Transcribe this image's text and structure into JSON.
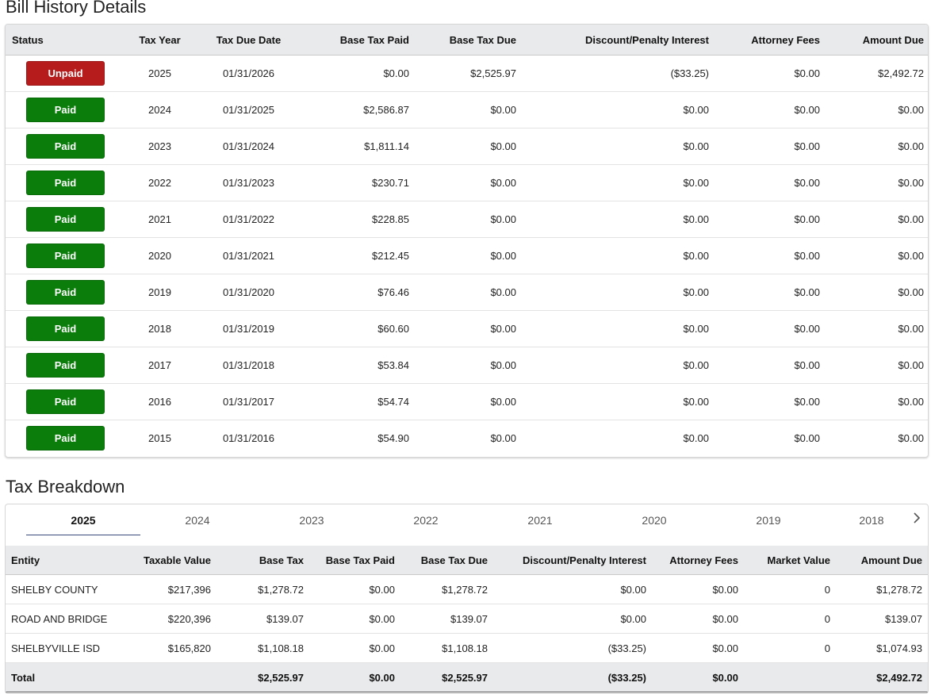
{
  "bill_history": {
    "title": "Bill History Details",
    "columns": [
      "Status",
      "Tax Year",
      "Tax Due Date",
      "Base Tax Paid",
      "Base Tax Due",
      "Discount/Penalty Interest",
      "Attorney Fees",
      "Amount Due"
    ],
    "rows": [
      {
        "status": "Unpaid",
        "status_color": "#b71c1c",
        "year": "2025",
        "due_date": "01/31/2026",
        "base_paid": "$0.00",
        "base_due": "$2,525.97",
        "discount": "($33.25)",
        "attorney": "$0.00",
        "amount_due": "$2,492.72"
      },
      {
        "status": "Paid",
        "status_color": "#0a7d0a",
        "year": "2024",
        "due_date": "01/31/2025",
        "base_paid": "$2,586.87",
        "base_due": "$0.00",
        "discount": "$0.00",
        "attorney": "$0.00",
        "amount_due": "$0.00"
      },
      {
        "status": "Paid",
        "status_color": "#0a7d0a",
        "year": "2023",
        "due_date": "01/31/2024",
        "base_paid": "$1,811.14",
        "base_due": "$0.00",
        "discount": "$0.00",
        "attorney": "$0.00",
        "amount_due": "$0.00"
      },
      {
        "status": "Paid",
        "status_color": "#0a7d0a",
        "year": "2022",
        "due_date": "01/31/2023",
        "base_paid": "$230.71",
        "base_due": "$0.00",
        "discount": "$0.00",
        "attorney": "$0.00",
        "amount_due": "$0.00"
      },
      {
        "status": "Paid",
        "status_color": "#0a7d0a",
        "year": "2021",
        "due_date": "01/31/2022",
        "base_paid": "$228.85",
        "base_due": "$0.00",
        "discount": "$0.00",
        "attorney": "$0.00",
        "amount_due": "$0.00"
      },
      {
        "status": "Paid",
        "status_color": "#0a7d0a",
        "year": "2020",
        "due_date": "01/31/2021",
        "base_paid": "$212.45",
        "base_due": "$0.00",
        "discount": "$0.00",
        "attorney": "$0.00",
        "amount_due": "$0.00"
      },
      {
        "status": "Paid",
        "status_color": "#0a7d0a",
        "year": "2019",
        "due_date": "01/31/2020",
        "base_paid": "$76.46",
        "base_due": "$0.00",
        "discount": "$0.00",
        "attorney": "$0.00",
        "amount_due": "$0.00"
      },
      {
        "status": "Paid",
        "status_color": "#0a7d0a",
        "year": "2018",
        "due_date": "01/31/2019",
        "base_paid": "$60.60",
        "base_due": "$0.00",
        "discount": "$0.00",
        "attorney": "$0.00",
        "amount_due": "$0.00"
      },
      {
        "status": "Paid",
        "status_color": "#0a7d0a",
        "year": "2017",
        "due_date": "01/31/2018",
        "base_paid": "$53.84",
        "base_due": "$0.00",
        "discount": "$0.00",
        "attorney": "$0.00",
        "amount_due": "$0.00"
      },
      {
        "status": "Paid",
        "status_color": "#0a7d0a",
        "year": "2016",
        "due_date": "01/31/2017",
        "base_paid": "$54.74",
        "base_due": "$0.00",
        "discount": "$0.00",
        "attorney": "$0.00",
        "amount_due": "$0.00"
      },
      {
        "status": "Paid",
        "status_color": "#0a7d0a",
        "year": "2015",
        "due_date": "01/31/2016",
        "base_paid": "$54.90",
        "base_due": "$0.00",
        "discount": "$0.00",
        "attorney": "$0.00",
        "amount_due": "$0.00"
      }
    ]
  },
  "tax_breakdown": {
    "title": "Tax Breakdown",
    "tabs": [
      "2025",
      "2024",
      "2023",
      "2022",
      "2021",
      "2020",
      "2019",
      "2018"
    ],
    "active_tab": "2025",
    "next_icon": "chevron-right-icon",
    "columns": [
      "Entity",
      "Taxable Value",
      "Base Tax",
      "Base Tax Paid",
      "Base Tax Due",
      "Discount/Penalty Interest",
      "Attorney Fees",
      "Market Value",
      "Amount Due"
    ],
    "rows": [
      {
        "entity": "SHELBY COUNTY",
        "taxable_value": "$217,396",
        "base_tax": "$1,278.72",
        "base_paid": "$0.00",
        "base_due": "$1,278.72",
        "discount": "$0.00",
        "attorney": "$0.00",
        "market_value": "0",
        "amount_due": "$1,278.72"
      },
      {
        "entity": "ROAD AND BRIDGE",
        "taxable_value": "$220,396",
        "base_tax": "$139.07",
        "base_paid": "$0.00",
        "base_due": "$139.07",
        "discount": "$0.00",
        "attorney": "$0.00",
        "market_value": "0",
        "amount_due": "$139.07"
      },
      {
        "entity": "SHELBYVILLE ISD",
        "taxable_value": "$165,820",
        "base_tax": "$1,108.18",
        "base_paid": "$0.00",
        "base_due": "$1,108.18",
        "discount": "($33.25)",
        "attorney": "$0.00",
        "market_value": "0",
        "amount_due": "$1,074.93"
      }
    ],
    "total": {
      "label": "Total",
      "taxable_value": "",
      "base_tax": "$2,525.97",
      "base_paid": "$0.00",
      "base_due": "$2,525.97",
      "discount": "($33.25)",
      "attorney": "$0.00",
      "market_value": "",
      "amount_due": "$2,492.72"
    }
  }
}
